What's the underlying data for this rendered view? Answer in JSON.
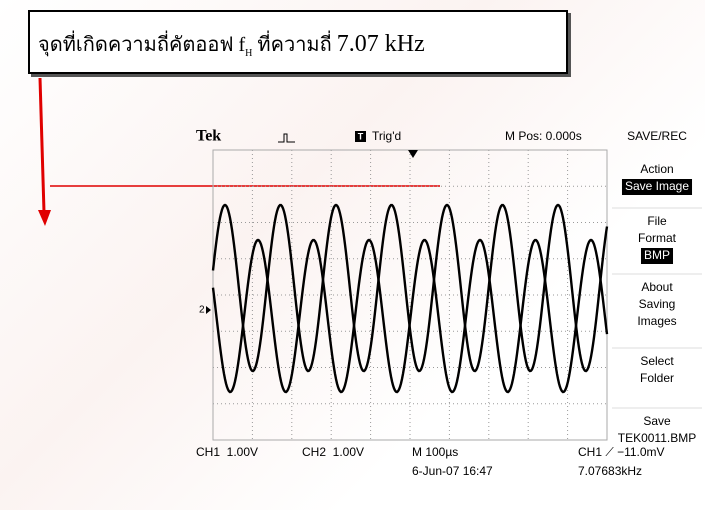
{
  "annotation": {
    "prefix": "จุดที่เกิดความถี่คัตออฟ f",
    "subscript": "H",
    "suffix": "ที่ความถี่",
    "value": "7.07 kHz"
  },
  "scope": {
    "brand": "Tek",
    "trigger_icon": "T",
    "trigger_status": "Trig'd",
    "position": "M Pos: 0.000s",
    "menu_title": "SAVE/REC",
    "channel_marker": "2",
    "menu": [
      {
        "label": [
          "Action"
        ],
        "value": "Save Image",
        "highlight": true
      },
      {
        "label": [
          "File",
          "Format"
        ],
        "value": "BMP",
        "highlight": true
      },
      {
        "label": [
          "About",
          "Saving",
          "Images"
        ]
      },
      {
        "label": [
          "Select",
          "Folder"
        ]
      },
      {
        "label": [
          "Save"
        ],
        "value": "TEK0011.BMP",
        "highlight": false
      }
    ],
    "status": {
      "ch1": "CH1  1.00V",
      "ch2": "CH2  1.00V",
      "timebase": "M 100µs",
      "trigger": "CH1 ⟋ −11.0mV",
      "date": "6-Jun-07 16:47",
      "frequency": "7.07683kHz"
    }
  }
}
